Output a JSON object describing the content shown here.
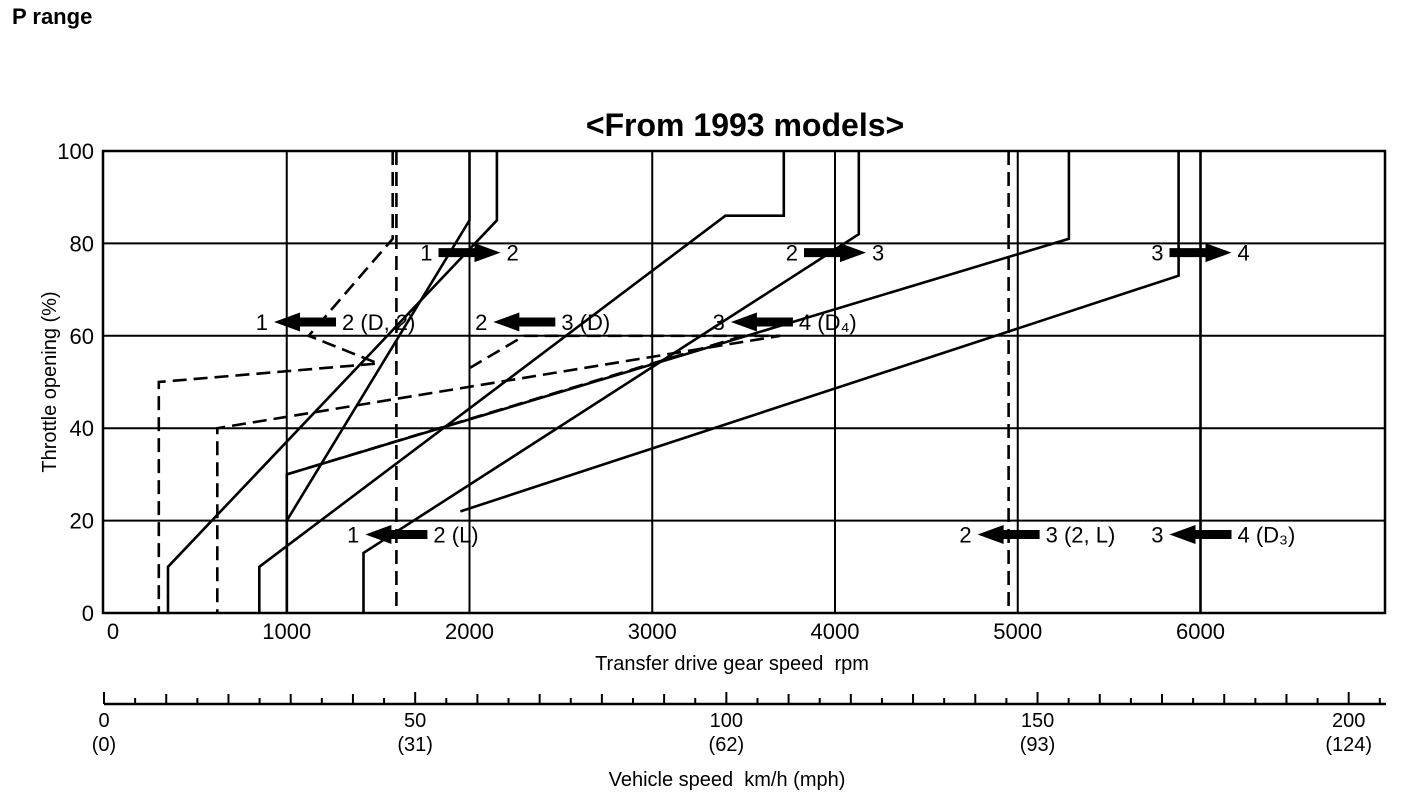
{
  "page_title": "P range",
  "chart_title": "<From 1993 models>",
  "chart_data": {
    "type": "line",
    "title": "<From 1993 models>",
    "xlabel": "Transfer drive gear speed  rpm",
    "ylabel": "Throttle opening (%)",
    "xlim": [
      0,
      7000
    ],
    "ylim": [
      0,
      100
    ],
    "x_ticks": [
      {
        "value": 0,
        "label": "0"
      },
      {
        "value": 1000,
        "label": "1000"
      },
      {
        "value": 2000,
        "label": "2000"
      },
      {
        "value": 3000,
        "label": "3000"
      },
      {
        "value": 4000,
        "label": "4000"
      },
      {
        "value": 5000,
        "label": "5000"
      },
      {
        "value": 6000,
        "label": "6000"
      }
    ],
    "y_ticks": [
      {
        "value": 0,
        "label": "0"
      },
      {
        "value": 20,
        "label": "20"
      },
      {
        "value": 40,
        "label": "40"
      },
      {
        "value": 60,
        "label": "60"
      },
      {
        "value": 80,
        "label": "80"
      },
      {
        "value": 100,
        "label": "100"
      }
    ],
    "grid": true,
    "series": [
      {
        "style": "solid",
        "points": [
          [
            2000,
            100
          ],
          [
            2000,
            85
          ],
          [
            1000,
            20
          ],
          [
            1000,
            0
          ]
        ]
      },
      {
        "style": "solid",
        "points": [
          [
            2150,
            100
          ],
          [
            2150,
            85
          ],
          [
            350,
            10
          ],
          [
            350,
            0
          ]
        ]
      },
      {
        "style": "solid",
        "points": [
          [
            3720,
            100
          ],
          [
            3720,
            86
          ],
          [
            3400,
            86
          ],
          [
            850,
            10
          ],
          [
            850,
            0
          ]
        ]
      },
      {
        "style": "solid",
        "points": [
          [
            4130,
            100
          ],
          [
            4130,
            82
          ],
          [
            1420,
            13
          ],
          [
            1420,
            0
          ]
        ]
      },
      {
        "style": "solid",
        "points": [
          [
            5280,
            100
          ],
          [
            5280,
            81
          ],
          [
            1000,
            30
          ],
          [
            1000,
            0
          ]
        ]
      },
      {
        "style": "solid",
        "points": [
          [
            5880,
            100
          ],
          [
            5880,
            73
          ],
          [
            1950,
            22
          ]
        ]
      },
      {
        "style": "solid",
        "points": [
          [
            6000,
            100
          ],
          [
            6000,
            0
          ]
        ]
      },
      {
        "style": "dashed",
        "points": [
          [
            1580,
            100
          ],
          [
            1580,
            81
          ],
          [
            1120,
            60
          ],
          [
            1500,
            54
          ],
          [
            300,
            50
          ],
          [
            300,
            0
          ]
        ]
      },
      {
        "style": "dashed",
        "points": [
          [
            1600,
            100
          ],
          [
            1600,
            0
          ]
        ]
      },
      {
        "style": "dashed",
        "points": [
          [
            4950,
            100
          ],
          [
            4950,
            0
          ]
        ]
      },
      {
        "style": "dashed",
        "points": [
          [
            2000,
            53
          ],
          [
            2300,
            60
          ],
          [
            3700,
            60
          ],
          [
            620,
            40
          ],
          [
            620,
            0
          ]
        ]
      },
      {
        "style": "dashed",
        "points": [
          [
            3500,
            60
          ],
          [
            1000,
            30
          ]
        ]
      }
    ],
    "shift_arrows": [
      {
        "from": "1",
        "to": "2",
        "direction": "right",
        "x": 2000,
        "y": 78
      },
      {
        "from": "2",
        "to": "3",
        "direction": "right",
        "x": 4000,
        "y": 78
      },
      {
        "from": "3",
        "to": "4",
        "direction": "right",
        "x": 6000,
        "y": 78
      },
      {
        "from": "1",
        "to": "2 (D, 2)",
        "direction": "left",
        "x": 1100,
        "y": 63
      },
      {
        "from": "2",
        "to": "3 (D)",
        "direction": "left",
        "x": 2300,
        "y": 63
      },
      {
        "from": "3",
        "to": "4 (D₄)",
        "direction": "left",
        "x": 3600,
        "y": 63
      },
      {
        "from": "1",
        "to": "2 (L)",
        "direction": "left",
        "x": 1600,
        "y": 17
      },
      {
        "from": "2",
        "to": "3 (2, L)",
        "direction": "left",
        "x": 4950,
        "y": 17
      },
      {
        "from": "3",
        "to": "4 (D₃)",
        "direction": "left",
        "x": 6000,
        "y": 17
      }
    ],
    "secondary_axis": {
      "label": "Vehicle speed  km/h (mph)",
      "xlim": [
        0,
        210
      ],
      "major_ticks": [
        {
          "value": 0,
          "kmh": "0",
          "mph": "(0)"
        },
        {
          "value": 50,
          "kmh": "50",
          "mph": "(31)"
        },
        {
          "value": 100,
          "kmh": "100",
          "mph": "(62)"
        },
        {
          "value": 150,
          "kmh": "150",
          "mph": "(93)"
        },
        {
          "value": 200,
          "kmh": "200",
          "mph": "(124)"
        }
      ],
      "minor_step": 10,
      "mid_step": 5
    }
  }
}
